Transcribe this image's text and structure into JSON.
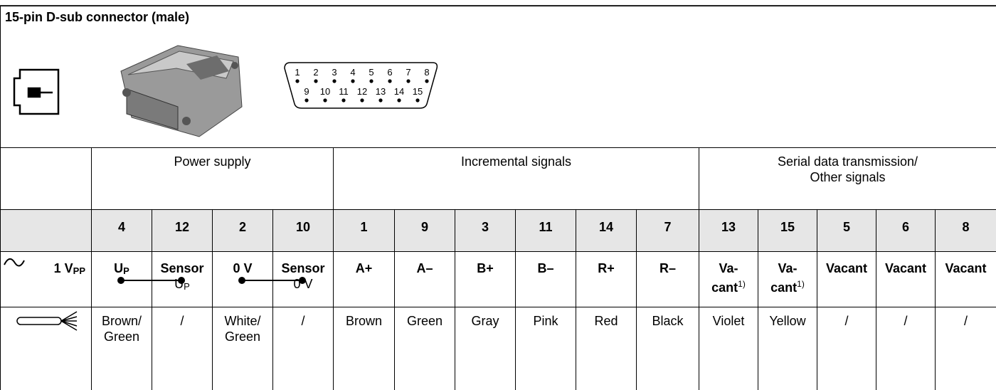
{
  "header": {
    "title": "15-pin D-sub connector (male)",
    "pins_top": [
      "1",
      "2",
      "3",
      "4",
      "5",
      "6",
      "7",
      "8"
    ],
    "pins_bottom": [
      "9",
      "10",
      "11",
      "12",
      "13",
      "14",
      "15"
    ]
  },
  "table": {
    "groups": [
      {
        "label": [
          "Power supply"
        ],
        "pins": [
          "4",
          "12",
          "2",
          "10"
        ]
      },
      {
        "label": [
          "Incremental signals"
        ],
        "pins": [
          "1",
          "9",
          "3",
          "11",
          "14",
          "7"
        ]
      },
      {
        "label": [
          "Serial data transmission/",
          "Other signals"
        ],
        "pins": [
          "13",
          "15",
          "5",
          "6",
          "8"
        ]
      }
    ],
    "signal_label": "1 V",
    "signal_label_sub": "PP",
    "signals": [
      {
        "text": "U",
        "sub": "P"
      },
      {
        "text": "Sensor",
        "line2": "U",
        "line2_sub": "P"
      },
      {
        "text": "0 V"
      },
      {
        "text": "Sensor",
        "line2": "0 V"
      },
      {
        "text": "A+"
      },
      {
        "text": "A–"
      },
      {
        "text": "B+"
      },
      {
        "text": "B–"
      },
      {
        "text": "R+"
      },
      {
        "text": "R–"
      },
      {
        "text": "Va-",
        "line2": "cant",
        "sup": "1)"
      },
      {
        "text": "Va-",
        "line2": "cant",
        "sup": "1)"
      },
      {
        "text": "Vacant"
      },
      {
        "text": "Vacant"
      },
      {
        "text": "Vacant"
      }
    ],
    "wires": [
      "Brown/ Green",
      "/",
      "White/ Green",
      "/",
      "Brown",
      "Green",
      "Gray",
      "Pink",
      "Red",
      "Black",
      "Violet",
      "Yellow",
      "/",
      "/",
      "/"
    ]
  }
}
